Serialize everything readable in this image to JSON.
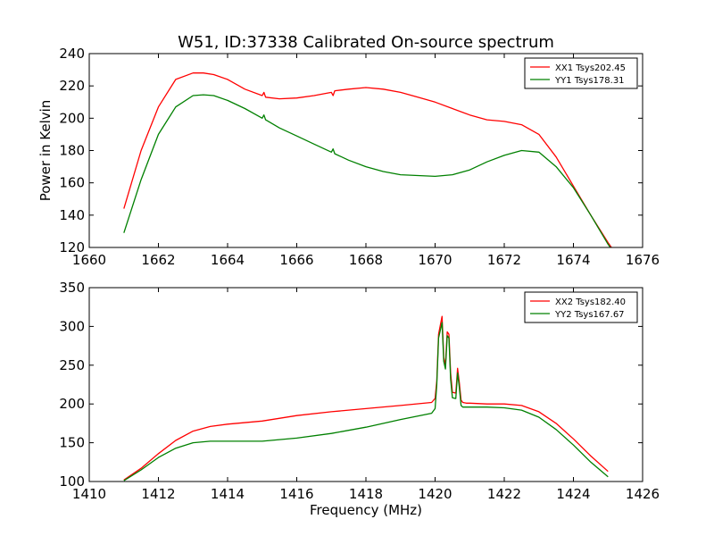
{
  "figure": {
    "title": "W51, ID:37338 Calibrated On-source spectrum"
  },
  "chart_data": [
    {
      "type": "line",
      "title": "W51, ID:37338 Calibrated On-source spectrum",
      "xlabel": "",
      "ylabel": "Power in Kelvin",
      "xlim": [
        1660,
        1676
      ],
      "ylim": [
        120,
        240
      ],
      "xticks": [
        "1660",
        "1662",
        "1664",
        "1666",
        "1668",
        "1670",
        "1672",
        "1674",
        "1676"
      ],
      "yticks": [
        "120",
        "140",
        "160",
        "180",
        "200",
        "220",
        "240"
      ],
      "grid": false,
      "legend_position": "top-right",
      "series": [
        {
          "name": "XX1 Tsys202.45",
          "color": "#ff0000",
          "x": [
            1661.0,
            1661.5,
            1662.0,
            1662.5,
            1663.0,
            1663.3,
            1663.6,
            1664.0,
            1664.5,
            1665.0,
            1665.05,
            1665.1,
            1665.5,
            1666.0,
            1666.5,
            1667.0,
            1667.05,
            1667.1,
            1667.5,
            1668.0,
            1668.5,
            1669.0,
            1669.5,
            1670.0,
            1670.5,
            1671.0,
            1671.5,
            1672.0,
            1672.5,
            1673.0,
            1673.5,
            1674.0,
            1674.5,
            1675.0,
            1675.1
          ],
          "y": [
            144,
            180,
            207,
            224,
            228,
            228,
            227,
            224,
            218,
            214,
            216,
            213,
            212,
            212.5,
            214,
            216,
            214,
            217,
            218,
            219,
            218,
            216,
            213,
            210,
            206,
            202,
            199,
            198,
            196,
            190,
            176,
            158,
            140,
            123,
            120
          ]
        },
        {
          "name": "YY1 Tsys178.31",
          "color": "#008000",
          "x": [
            1661.0,
            1661.5,
            1662.0,
            1662.5,
            1663.0,
            1663.3,
            1663.6,
            1664.0,
            1664.5,
            1665.0,
            1665.05,
            1665.1,
            1665.5,
            1666.0,
            1666.5,
            1667.0,
            1667.05,
            1667.1,
            1667.5,
            1668.0,
            1668.5,
            1669.0,
            1669.5,
            1670.0,
            1670.5,
            1671.0,
            1671.5,
            1672.0,
            1672.5,
            1673.0,
            1673.5,
            1674.0,
            1674.5,
            1675.0,
            1675.1
          ],
          "y": [
            129,
            162,
            190,
            207,
            214,
            214.5,
            214,
            211,
            206,
            200,
            202,
            199,
            194,
            189,
            184,
            179,
            181,
            178,
            174,
            170,
            167,
            165,
            164.5,
            164,
            165,
            168,
            173,
            177,
            180,
            179,
            170,
            157,
            140,
            122,
            119
          ]
        }
      ]
    },
    {
      "type": "line",
      "title": "",
      "xlabel": "Frequency (MHz)",
      "ylabel": "",
      "xlim": [
        1410,
        1426
      ],
      "ylim": [
        100,
        350
      ],
      "xticks": [
        "1410",
        "1412",
        "1414",
        "1416",
        "1418",
        "1420",
        "1422",
        "1424",
        "1426"
      ],
      "yticks": [
        "100",
        "150",
        "200",
        "250",
        "300",
        "350"
      ],
      "grid": false,
      "legend_position": "top-right",
      "series": [
        {
          "name": "XX2 Tsys182.40",
          "color": "#ff0000",
          "x": [
            1411.0,
            1411.5,
            1412.0,
            1412.5,
            1413.0,
            1413.5,
            1414.0,
            1415.0,
            1416.0,
            1417.0,
            1418.0,
            1419.0,
            1419.9,
            1420.0,
            1420.05,
            1420.1,
            1420.2,
            1420.25,
            1420.3,
            1420.35,
            1420.4,
            1420.45,
            1420.5,
            1420.6,
            1420.65,
            1420.7,
            1420.75,
            1420.8,
            1420.9,
            1421.0,
            1421.5,
            1422.0,
            1422.5,
            1423.0,
            1423.5,
            1424.0,
            1424.5,
            1425.0
          ],
          "y": [
            102,
            117,
            136,
            153,
            165,
            171,
            174,
            178,
            185,
            190,
            194,
            198,
            202,
            207,
            230,
            290,
            313,
            260,
            250,
            293,
            290,
            240,
            215,
            214,
            246,
            228,
            205,
            202,
            201,
            201,
            200,
            200,
            198,
            190,
            175,
            155,
            133,
            113
          ]
        },
        {
          "name": "YY2 Tsys167.67",
          "color": "#008000",
          "x": [
            1411.0,
            1411.5,
            1412.0,
            1412.5,
            1413.0,
            1413.5,
            1414.0,
            1415.0,
            1416.0,
            1417.0,
            1418.0,
            1419.0,
            1419.9,
            1420.0,
            1420.05,
            1420.1,
            1420.2,
            1420.25,
            1420.3,
            1420.35,
            1420.4,
            1420.45,
            1420.5,
            1420.6,
            1420.65,
            1420.7,
            1420.75,
            1420.8,
            1420.9,
            1421.0,
            1421.5,
            1422.0,
            1422.5,
            1423.0,
            1423.5,
            1424.0,
            1424.5,
            1425.0
          ],
          "y": [
            101,
            115,
            131,
            143,
            150,
            152,
            152,
            152,
            156,
            162,
            170,
            180,
            188,
            194,
            225,
            285,
            305,
            255,
            245,
            288,
            285,
            232,
            208,
            207,
            240,
            222,
            198,
            196,
            196,
            196,
            196,
            195,
            192,
            183,
            167,
            147,
            125,
            106
          ]
        }
      ]
    }
  ]
}
